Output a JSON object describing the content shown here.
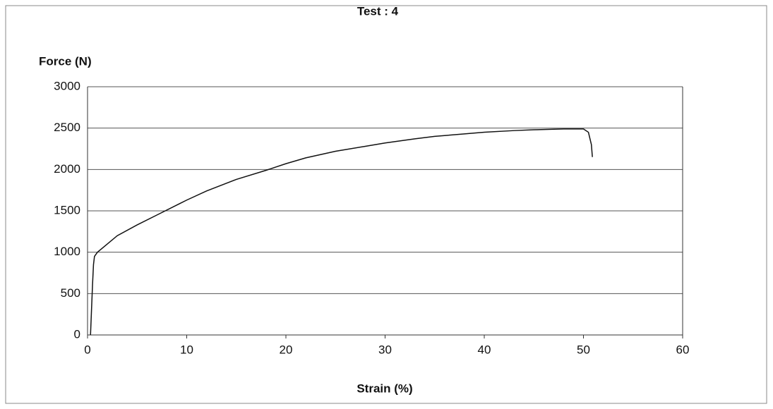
{
  "chart_data": {
    "type": "line",
    "title": "Test : 4",
    "y_label": "Force (N)",
    "x_label": "Strain (%)",
    "x": [
      0.3,
      0.4,
      0.5,
      0.6,
      0.7,
      1,
      2,
      3,
      5,
      7,
      10,
      12,
      15,
      18,
      20,
      22,
      25,
      28,
      30,
      33,
      35,
      38,
      40,
      43,
      45,
      48,
      50,
      50.5,
      50.8,
      50.9
    ],
    "series": [
      {
        "name": "Test : 4",
        "color": "#111111",
        "values": [
          0,
          300,
          600,
          850,
          950,
          1000,
          1100,
          1200,
          1330,
          1450,
          1630,
          1740,
          1880,
          1990,
          2070,
          2140,
          2220,
          2280,
          2320,
          2370,
          2400,
          2430,
          2450,
          2470,
          2480,
          2490,
          2490,
          2450,
          2300,
          2150
        ]
      }
    ],
    "xlim": [
      0,
      60
    ],
    "xticks": [
      0,
      10,
      20,
      30,
      40,
      50,
      60
    ],
    "ylim": [
      0,
      3000
    ],
    "yticks": [
      0,
      500,
      1000,
      1500,
      2000,
      2500,
      3000
    ],
    "grid": true
  }
}
